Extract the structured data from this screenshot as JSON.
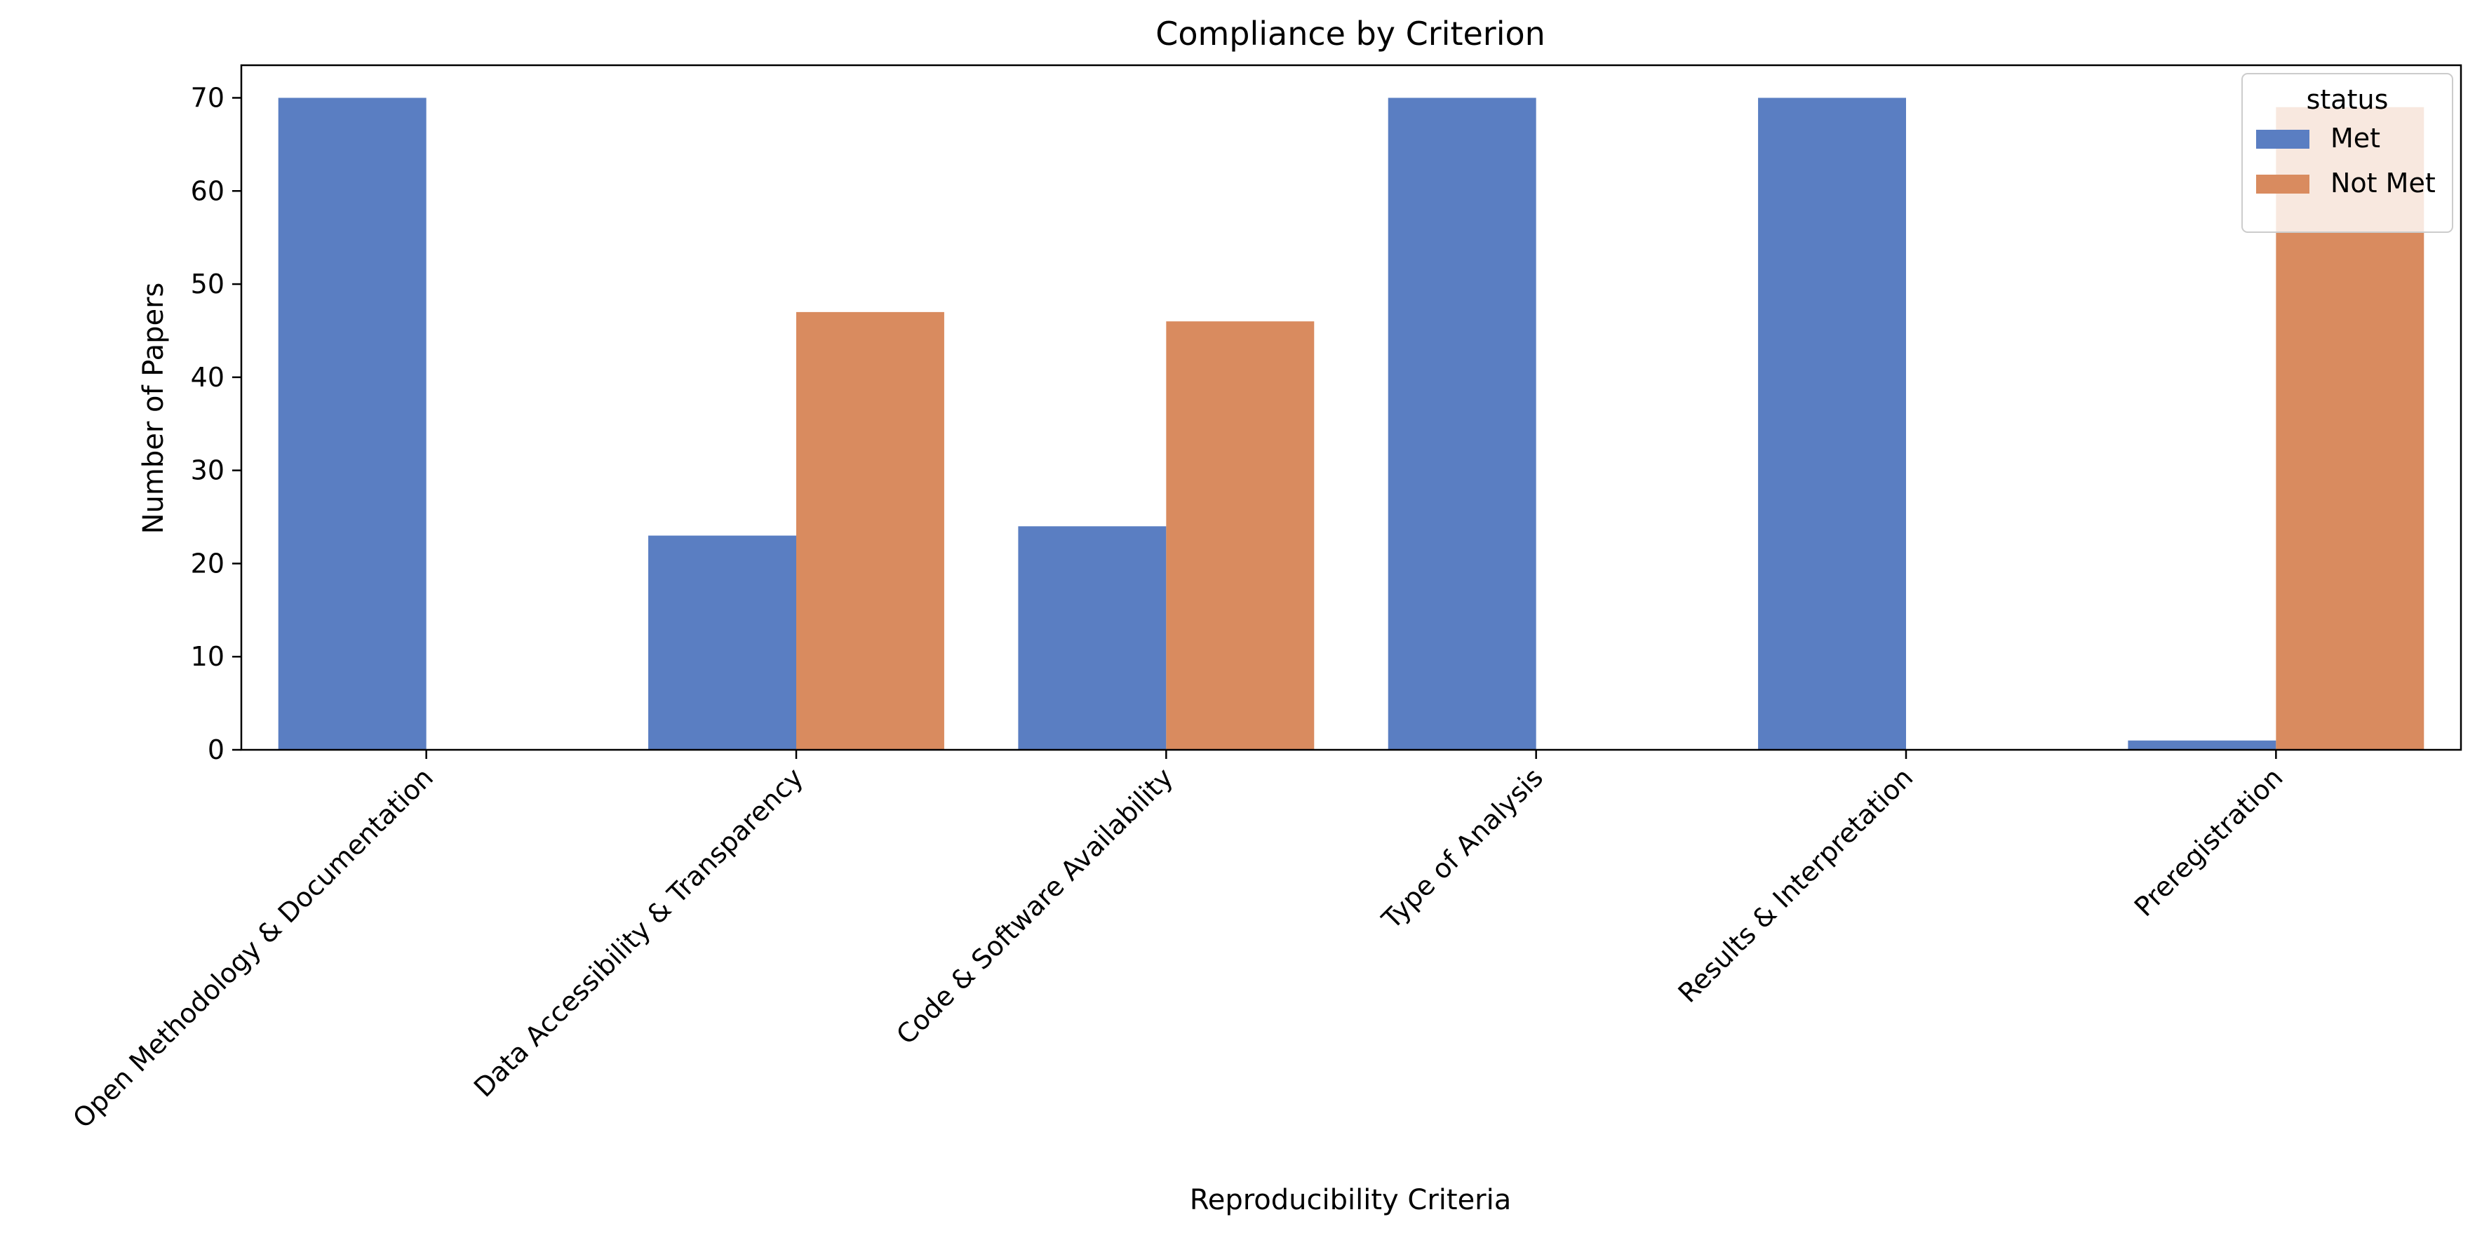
{
  "chart_data": {
    "type": "bar",
    "title": "Compliance by Criterion",
    "xlabel": "Reproducibility Criteria",
    "ylabel": "Number of Papers",
    "categories": [
      "Open Methodology & Documentation",
      "Data Accessibility & Transparency",
      "Code & Software Availability",
      "Type of Analysis",
      "Results & Interpretation",
      "Preregistration"
    ],
    "series": [
      {
        "name": "Met",
        "color": "#5a7ec2",
        "values": [
          70,
          23,
          24,
          70,
          70,
          1
        ]
      },
      {
        "name": "Not Met",
        "color": "#d98b5f",
        "values": [
          0,
          47,
          46,
          0,
          0,
          69
        ]
      }
    ],
    "ylim": [
      0,
      73.5
    ],
    "yticks": [
      0,
      10,
      20,
      30,
      40,
      50,
      60,
      70
    ],
    "grid": false,
    "legend": {
      "title": "status",
      "placement": "top-right"
    }
  }
}
